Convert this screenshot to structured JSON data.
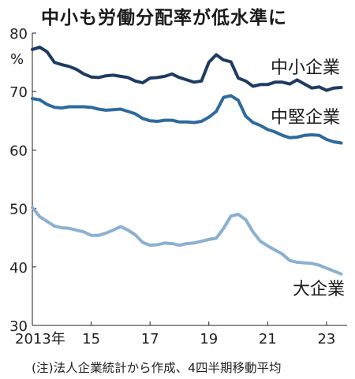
{
  "chart_data": {
    "type": "line",
    "title": "中小も労働分配率が低水準に",
    "y_unit": "%",
    "x_tick_labels": [
      "2013年",
      "15",
      "17",
      "19",
      "21",
      "23"
    ],
    "x_ticks": [
      2013,
      2015,
      2017,
      2019,
      2021,
      2023
    ],
    "xlim": [
      2013,
      2023.7
    ],
    "y_ticks": [
      30,
      40,
      50,
      60,
      70,
      80
    ],
    "ylim": [
      30,
      80
    ],
    "grid": false,
    "note": "(注)法人企業統計から作成、4四半期移動平均",
    "x": [
      2013.0,
      2013.25,
      2013.5,
      2013.75,
      2014.0,
      2014.25,
      2014.5,
      2014.75,
      2015.0,
      2015.25,
      2015.5,
      2015.75,
      2016.0,
      2016.25,
      2016.5,
      2016.75,
      2017.0,
      2017.25,
      2017.5,
      2017.75,
      2018.0,
      2018.25,
      2018.5,
      2018.75,
      2019.0,
      2019.25,
      2019.5,
      2019.75,
      2020.0,
      2020.25,
      2020.5,
      2020.75,
      2021.0,
      2021.25,
      2021.5,
      2021.75,
      2022.0,
      2022.25,
      2022.5,
      2022.75,
      2023.0,
      2023.25,
      2023.5
    ],
    "series": [
      {
        "name": "中小企業",
        "color": "#1f3b63",
        "values": [
          77.2,
          77.6,
          76.8,
          75.0,
          74.6,
          74.3,
          73.8,
          73.0,
          72.5,
          72.4,
          72.7,
          72.8,
          72.6,
          72.4,
          71.8,
          71.5,
          72.3,
          72.4,
          72.6,
          73.0,
          72.4,
          72.0,
          71.6,
          71.8,
          75.0,
          76.3,
          75.4,
          75.1,
          72.3,
          71.8,
          70.9,
          71.2,
          71.2,
          71.6,
          71.6,
          71.3,
          72.0,
          71.3,
          70.6,
          70.8,
          70.2,
          70.6,
          70.7
        ]
      },
      {
        "name": "中堅企業",
        "color": "#2e6a9e",
        "values": [
          68.8,
          68.6,
          67.8,
          67.3,
          67.2,
          67.4,
          67.4,
          67.4,
          67.3,
          67.0,
          66.8,
          66.9,
          67.0,
          66.6,
          66.2,
          65.4,
          65.0,
          64.9,
          65.1,
          65.1,
          64.8,
          64.8,
          64.7,
          64.9,
          65.6,
          66.6,
          69.0,
          69.3,
          68.5,
          65.8,
          64.7,
          64.2,
          63.5,
          63.1,
          62.5,
          62.1,
          62.2,
          62.5,
          62.6,
          62.5,
          61.8,
          61.4,
          61.2
        ]
      },
      {
        "name": "大企業",
        "color": "#8cb0d0",
        "values": [
          50.2,
          48.6,
          47.8,
          47.0,
          46.7,
          46.6,
          46.3,
          46.0,
          45.4,
          45.4,
          45.8,
          46.3,
          46.9,
          46.3,
          45.5,
          44.2,
          43.7,
          43.8,
          44.1,
          44.0,
          43.7,
          44.0,
          44.1,
          44.4,
          44.7,
          44.9,
          46.6,
          48.7,
          49.0,
          48.1,
          46.0,
          44.4,
          43.6,
          42.9,
          42.2,
          41.1,
          40.8,
          40.7,
          40.6,
          40.3,
          39.8,
          39.3,
          38.8
        ]
      }
    ]
  }
}
